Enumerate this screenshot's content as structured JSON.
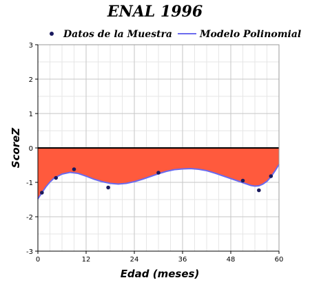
{
  "chart_data": {
    "type": "line",
    "title": "ENAL 1996",
    "xlabel": "Edad (meses)",
    "ylabel": "ScoreZ",
    "xlim": [
      0,
      60
    ],
    "ylim": [
      -3,
      3
    ],
    "xticks": [
      0,
      12,
      24,
      36,
      48,
      60
    ],
    "yticks": [
      -3,
      -2,
      -1,
      0,
      1,
      2,
      3
    ],
    "grid": true,
    "legend_position": "top",
    "series": [
      {
        "name": "Datos de la Muestra",
        "kind": "scatter",
        "color": "#1a1a5e",
        "x": [
          1,
          4.5,
          9,
          17.5,
          30,
          51,
          55,
          58
        ],
        "y": [
          -1.3,
          -0.87,
          -0.62,
          -1.15,
          -0.72,
          -0.95,
          -1.23,
          -0.82
        ]
      },
      {
        "name": "Modelo Polinomial",
        "kind": "line",
        "color": "#6a6aee",
        "fill_to_zero": "#ff5a3d",
        "x": [
          0,
          1,
          2,
          3,
          4,
          6,
          8,
          10,
          12,
          14,
          16,
          18,
          20,
          22,
          24,
          26,
          28,
          30,
          32,
          34,
          36,
          38,
          40,
          42,
          44,
          46,
          48,
          50,
          52,
          53,
          54,
          55,
          56,
          57,
          58,
          59,
          60
        ],
        "y": [
          -1.48,
          -1.3,
          -1.13,
          -0.99,
          -0.88,
          -0.76,
          -0.71,
          -0.74,
          -0.82,
          -0.91,
          -0.98,
          -1.03,
          -1.05,
          -1.03,
          -0.98,
          -0.91,
          -0.83,
          -0.75,
          -0.68,
          -0.63,
          -0.61,
          -0.6,
          -0.62,
          -0.66,
          -0.73,
          -0.81,
          -0.89,
          -0.97,
          -1.05,
          -1.09,
          -1.11,
          -1.1,
          -1.05,
          -0.97,
          -0.84,
          -0.67,
          -0.48
        ]
      }
    ]
  }
}
